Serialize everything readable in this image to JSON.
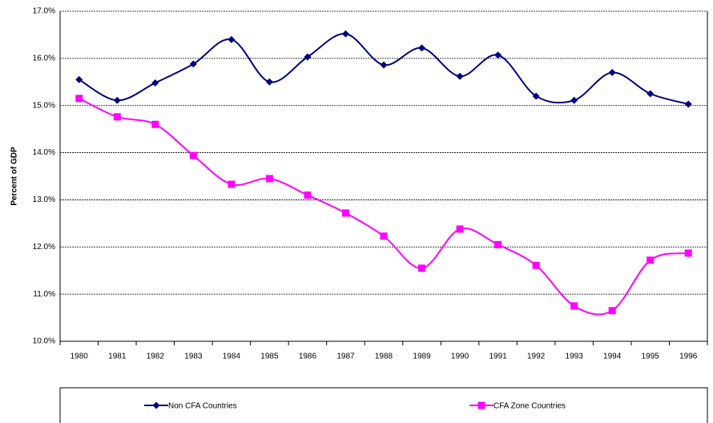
{
  "chart_data": {
    "type": "line",
    "y_label": "Percent of GDP",
    "categories": [
      "1980",
      "1981",
      "1982",
      "1983",
      "1984",
      "1985",
      "1986",
      "1987",
      "1988",
      "1989",
      "1990",
      "1991",
      "1992",
      "1993",
      "1994",
      "1995",
      "1996"
    ],
    "series": [
      {
        "name": "Non CFA Countries",
        "color": "#000080",
        "marker": "diamond",
        "values": [
          15.55,
          15.11,
          15.48,
          15.88,
          16.4,
          15.5,
          16.03,
          16.52,
          15.86,
          16.22,
          15.62,
          16.07,
          15.2,
          15.11,
          15.7,
          15.25,
          15.03
        ]
      },
      {
        "name": "CFA Zone Countries",
        "color": "#ff00ff",
        "marker": "square",
        "values": [
          15.15,
          14.76,
          14.6,
          13.94,
          13.33,
          13.45,
          13.1,
          12.72,
          12.23,
          11.55,
          12.38,
          12.05,
          11.61,
          10.75,
          10.65,
          11.72,
          11.87
        ]
      }
    ],
    "ylim": [
      10,
      17
    ],
    "yticks": [
      {
        "value": 10,
        "label": "10.0%"
      },
      {
        "value": 11,
        "label": "11.0%"
      },
      {
        "value": 12,
        "label": "12.0%"
      },
      {
        "value": 13,
        "label": "13.0%"
      },
      {
        "value": 14,
        "label": "14.0%"
      },
      {
        "value": 15,
        "label": "15.0%"
      },
      {
        "value": 16,
        "label": "16.0%"
      },
      {
        "value": 17,
        "label": "17.0%"
      }
    ],
    "grid": true,
    "smooth": true,
    "legend": "bottom"
  }
}
